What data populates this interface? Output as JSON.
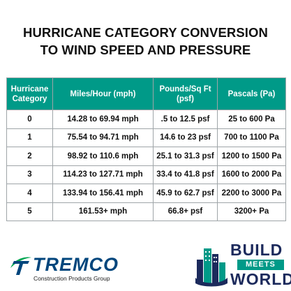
{
  "title": {
    "line1": "HURRICANE CATEGORY CONVERSION",
    "line2": "TO WIND SPEED AND PRESSURE"
  },
  "table": {
    "headers": [
      {
        "line1": "Hurricane",
        "line2": "Category"
      },
      {
        "line1": "Miles/Hour (mph)",
        "line2": ""
      },
      {
        "line1": "Pounds/Sq Ft",
        "line2": "(psf)"
      },
      {
        "line1": "Pascals (Pa)",
        "line2": ""
      }
    ],
    "rows": [
      [
        "0",
        "14.28 to 69.94 mph",
        ".5 to 12.5 psf",
        "25 to 600 Pa"
      ],
      [
        "1",
        "75.54 to 94.71 mph",
        "14.6 to 23 psf",
        "700 to 1100 Pa"
      ],
      [
        "2",
        "98.92 to 110.6 mph",
        "25.1 to 31.3 psf",
        "1200 to 1500 Pa"
      ],
      [
        "3",
        "114.23 to 127.71 mph",
        "33.4 to 41.8 psf",
        "1600 to 2000 Pa"
      ],
      [
        "4",
        "133.94 to 156.41 mph",
        "45.9 to 62.7 psf",
        "2200 to 3000 Pa"
      ],
      [
        "5",
        "161.53+ mph",
        "66.8+ psf",
        "3200+ Pa"
      ]
    ]
  },
  "logos": {
    "tremco": {
      "name": "TREMCO",
      "tagline": "Construction Products Group"
    },
    "build_meets_world": {
      "line1": "BUILD",
      "line2": "MEETS",
      "line3": "WORLD"
    }
  },
  "colors": {
    "header_bg": "#009a88",
    "header_text": "#ffffff",
    "tremco_blue": "#00457c",
    "tremco_green": "#00a651",
    "bmw_navy": "#1c2a5c",
    "bmw_teal": "#009a88"
  }
}
